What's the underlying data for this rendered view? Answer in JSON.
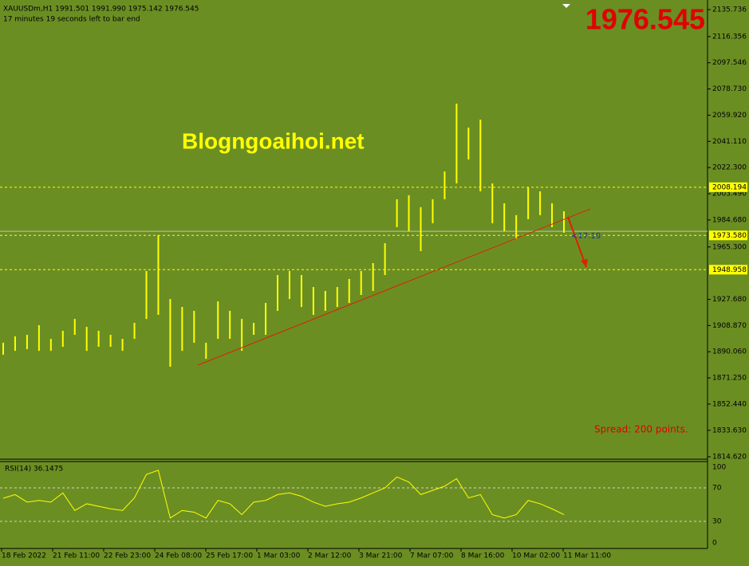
{
  "header": {
    "symbol_line": "XAUUSDm,H1  1991.501 1991.990 1975.142 1976.545",
    "countdown": "17 minutes 19 seconds left to bar end"
  },
  "big_price": {
    "value": 1976.545,
    "label": "1976.545"
  },
  "watermark": "Blogngoaihoi.net",
  "spread": "Spread: 200 points.",
  "timer": "<17:19",
  "price_axis": {
    "ylim": [
      1814.62,
      2135.736
    ],
    "ticks": [
      {
        "value": 2135.736,
        "label": "2135.736"
      },
      {
        "value": 2116.356,
        "label": "2116.356"
      },
      {
        "value": 2097.546,
        "label": "2097.546"
      },
      {
        "value": 2078.73,
        "label": "2078.730"
      },
      {
        "value": 2059.92,
        "label": "2059.920"
      },
      {
        "value": 2041.11,
        "label": "2041.110"
      },
      {
        "value": 2022.3,
        "label": "2022.300"
      },
      {
        "value": 2003.49,
        "label": "2003.490"
      },
      {
        "value": 1984.68,
        "label": "1984.680"
      },
      {
        "value": 1965.3,
        "label": "1965.300"
      },
      {
        "value": 1927.68,
        "label": "1927.680"
      },
      {
        "value": 1908.87,
        "label": "1908.870"
      },
      {
        "value": 1890.06,
        "label": "1890.060"
      },
      {
        "value": 1871.25,
        "label": "1871.250"
      },
      {
        "value": 1852.44,
        "label": "1852.440"
      },
      {
        "value": 1833.63,
        "label": "1833.630"
      },
      {
        "value": 1814.62,
        "label": "1814.620"
      }
    ]
  },
  "levels": [
    {
      "value": 2008.194,
      "label": "2008.194"
    },
    {
      "value": 1973.58,
      "label": "1973.580"
    },
    {
      "value": 1948.958,
      "label": "1948.958"
    }
  ],
  "trendline": {
    "from": 1880.4,
    "to": 1992.6
  },
  "arrow": {
    "from": 1986.9,
    "to": 1950.9
  },
  "bars": {
    "highs": [
      1896.5,
      1901.1,
      1902.2,
      1909.1,
      1899.3,
      1905.1,
      1913.6,
      1907.9,
      1905.1,
      1902.2,
      1899.3,
      1910.8,
      1948.0,
      1973.7,
      1927.9,
      1922.2,
      1919.4,
      1896.5,
      1926.2,
      1919.4,
      1913.6,
      1910.8,
      1925.1,
      1945.1,
      1948.0,
      1945.1,
      1936.5,
      1933.7,
      1936.5,
      1942.3,
      1948.0,
      1953.7,
      1968.0,
      1999.5,
      2002.4,
      1993.8,
      1999.5,
      2019.5,
      2068.2,
      2051.0,
      2056.7,
      2010.9,
      1996.6,
      1988.1,
      2008.1,
      2005.2,
      1996.6,
      1990.9
    ],
    "lows": [
      1887.9,
      1890.7,
      1891.9,
      1890.7,
      1890.7,
      1893.6,
      1902.2,
      1890.7,
      1893.6,
      1893.6,
      1890.7,
      1899.3,
      1913.6,
      1916.5,
      1879.3,
      1890.7,
      1896.5,
      1885.0,
      1899.3,
      1899.3,
      1890.7,
      1902.2,
      1902.2,
      1919.4,
      1927.9,
      1922.2,
      1916.5,
      1919.4,
      1922.2,
      1925.1,
      1930.8,
      1933.7,
      1945.1,
      1979.5,
      1976.6,
      1962.3,
      1982.3,
      1999.5,
      2010.9,
      2028.1,
      2005.2,
      1982.3,
      1976.6,
      1970.9,
      1985.2,
      1988.1,
      1979.5,
      1975.5
    ]
  },
  "time_axis": [
    "18 Feb 2022",
    "21 Feb 11:00",
    "22 Feb 23:00",
    "24 Feb 08:00",
    "25 Feb 17:00",
    "1 Mar 03:00",
    "2 Mar 12:00",
    "3 Mar 21:00",
    "7 Mar 07:00",
    "8 Mar 16:00",
    "10 Mar 02:00",
    "11 Mar 11:00"
  ],
  "rsi": {
    "label": "RSI(14) 36.1475",
    "ylim": [
      0,
      100
    ],
    "ticks": [
      100,
      70,
      30,
      0
    ],
    "values": [
      57.6,
      62,
      53,
      55,
      53,
      64,
      43,
      51,
      48,
      45,
      43,
      58,
      86,
      91,
      34,
      43,
      41,
      34,
      55,
      51,
      38,
      53,
      55,
      62,
      64,
      60,
      53,
      48,
      51,
      53,
      58,
      64,
      70,
      83,
      77,
      62,
      67,
      72,
      81,
      58,
      62,
      38,
      34,
      38,
      55,
      51,
      45,
      38
    ]
  }
}
